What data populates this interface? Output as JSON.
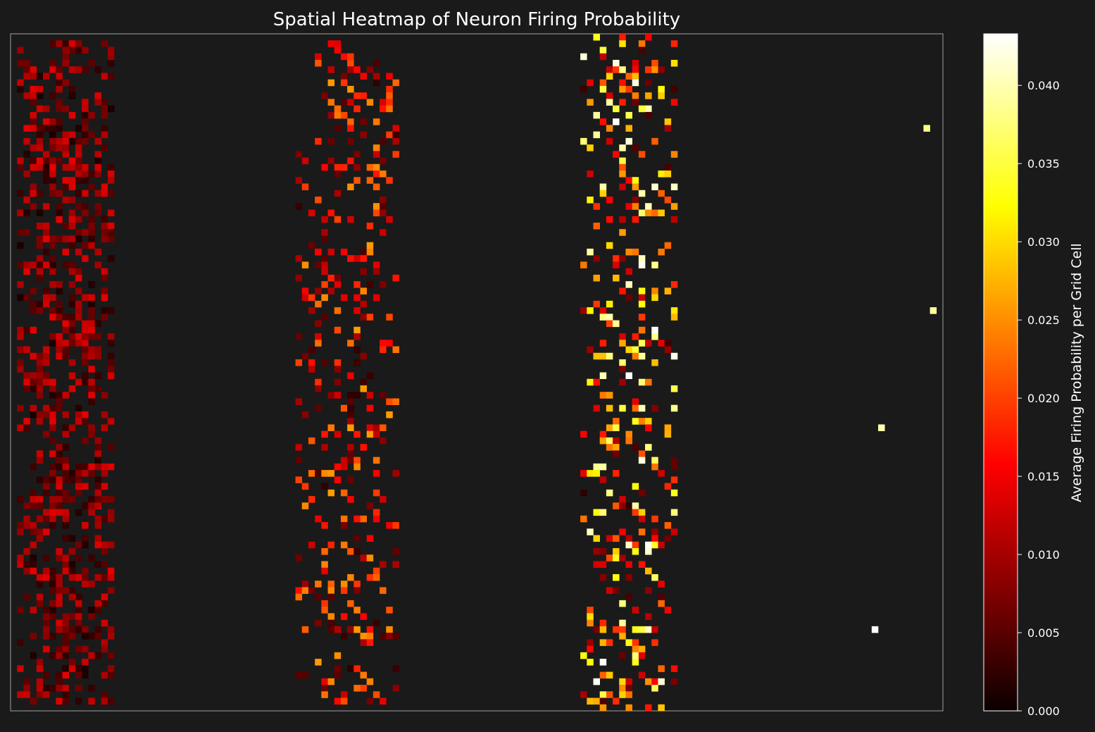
{
  "chart_data": {
    "type": "heatmap",
    "title": "Spatial Heatmap of Neuron Firing Probability",
    "colorbar": {
      "label": "Average Firing Probability per Grid Cell",
      "colormap": "hot",
      "range": [
        0,
        0.0433
      ],
      "ticks": [
        0.0,
        0.005,
        0.01,
        0.015,
        0.02,
        0.025,
        0.03,
        0.035,
        0.04
      ],
      "tick_labels": [
        "0.000",
        "0.005",
        "0.010",
        "0.015",
        "0.020",
        "0.025",
        "0.030",
        "0.035",
        "0.040"
      ]
    },
    "axes": {
      "xticks": "hidden",
      "yticks": "hidden",
      "grid": false
    },
    "grid": {
      "cols": 144,
      "rows": 104
    },
    "clusters": [
      {
        "col_start": 1,
        "col_end": 15,
        "row_start": 1,
        "row_end": 102,
        "density": 0.5,
        "value_range": [
          0.0008,
          0.0135
        ]
      },
      {
        "col_start": 44,
        "col_end": 59,
        "row_start": 1,
        "row_end": 102,
        "density": 0.24,
        "value_range": [
          0.002,
          0.026
        ]
      },
      {
        "col_start": 88,
        "col_end": 102,
        "row_start": 0,
        "row_end": 103,
        "density": 0.26,
        "value_range": [
          0.002,
          0.0433
        ]
      }
    ],
    "isolated_cells": [
      {
        "col": 141,
        "row": 14,
        "value": 0.038
      },
      {
        "col": 142,
        "row": 42,
        "value": 0.039
      },
      {
        "col": 134,
        "row": 60,
        "value": 0.04
      },
      {
        "col": 133,
        "row": 91,
        "value": 0.0433
      }
    ],
    "background": "#1a1a1a"
  }
}
